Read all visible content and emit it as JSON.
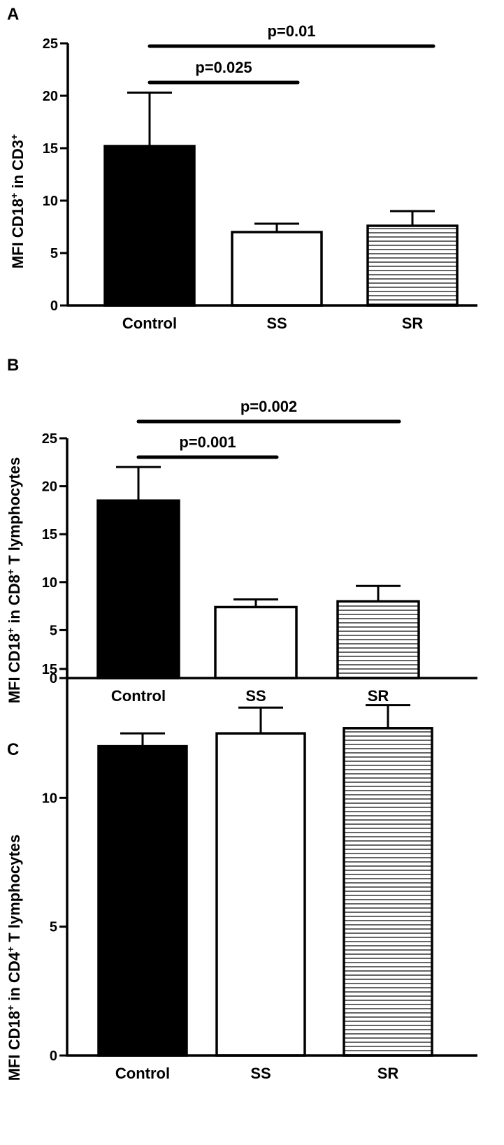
{
  "colors": {
    "ink": "#000000",
    "control_fill": "#000000",
    "ss_fill": "#ffffff",
    "sr_fill": "#ffffff",
    "sr_hatch": "#000000"
  },
  "chart_data": [
    {
      "type": "bar",
      "panel": "A",
      "ylabel_main": "MFI CD18",
      "ylabel_sup1": "+",
      "ylabel_mid": " in CD3",
      "ylabel_sup2": "+",
      "ylabel_end": "",
      "categories": [
        "Control",
        "SS",
        "SR"
      ],
      "series": [
        {
          "values": [
            15.2,
            7.0,
            7.6
          ],
          "errors": [
            5.1,
            0.8,
            1.4
          ],
          "patterns": [
            "solid",
            "open",
            "hlines"
          ]
        }
      ],
      "ylim": [
        0,
        25
      ],
      "yticks": [
        0,
        5,
        10,
        15,
        20,
        25
      ],
      "significance": [
        {
          "from": 0,
          "to": 1,
          "label": "p=0.025"
        },
        {
          "from": 0,
          "to": 2,
          "label": "p=0.01"
        }
      ],
      "grid": false
    },
    {
      "type": "bar",
      "panel": "B",
      "ylabel_main": "MFI CD18",
      "ylabel_sup1": "+",
      "ylabel_mid": " in CD8",
      "ylabel_sup2": "+",
      "ylabel_end": " T lymphocytes",
      "categories": [
        "Control",
        "SS",
        "SR"
      ],
      "series": [
        {
          "values": [
            18.5,
            7.4,
            8.0
          ],
          "errors": [
            3.5,
            0.8,
            1.6
          ],
          "patterns": [
            "solid",
            "open",
            "hlines"
          ]
        }
      ],
      "ylim": [
        0,
        25
      ],
      "yticks": [
        0,
        5,
        10,
        15,
        20,
        25
      ],
      "significance": [
        {
          "from": 0,
          "to": 1,
          "label": "p=0.001"
        },
        {
          "from": 0,
          "to": 2,
          "label": "p=0.002"
        }
      ],
      "grid": false
    },
    {
      "type": "bar",
      "panel": "C",
      "ylabel_main": "MFI CD18",
      "ylabel_sup1": "+",
      "ylabel_mid": " in CD4",
      "ylabel_sup2": "+",
      "ylabel_end": " T lymphocytes",
      "categories": [
        "Control",
        "SS",
        "SR"
      ],
      "series": [
        {
          "values": [
            12.0,
            12.5,
            12.7
          ],
          "errors": [
            0.5,
            1.0,
            0.9
          ],
          "patterns": [
            "solid",
            "open",
            "hlines"
          ]
        }
      ],
      "ylim": [
        0,
        15
      ],
      "yticks": [
        0,
        5,
        10,
        15
      ],
      "significance": [],
      "grid": false
    }
  ]
}
